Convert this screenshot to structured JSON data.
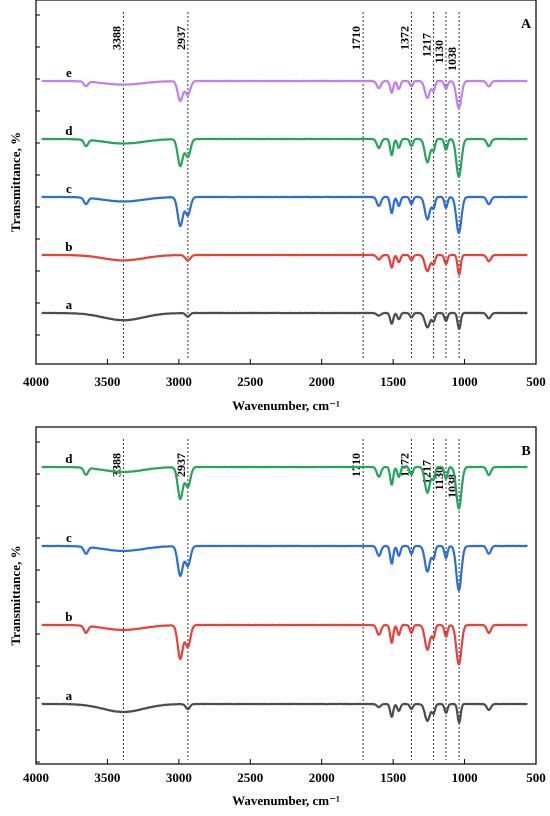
{
  "chart_data": [
    {
      "type": "line",
      "panel_label": "A",
      "xlabel": "Wavenumber, cm⁻¹",
      "ylabel": "Transmittance, %",
      "xlim": [
        4000,
        500
      ],
      "x_ticks": [
        "4000",
        "3500",
        "3000",
        "2500",
        "2000",
        "1500",
        "1000",
        "500"
      ],
      "reference_lines": [
        "3388",
        "2937",
        "1710",
        "1372",
        "1217",
        "1130",
        "1038"
      ],
      "series": [
        {
          "name": "a",
          "color": "#4d4d4d",
          "offset": 0,
          "bands": [
            [
              3388,
              0.8,
              200
            ],
            [
              2937,
              0.4,
              20
            ],
            [
              1600,
              0.3,
              20
            ],
            [
              1510,
              1.2,
              15
            ],
            [
              1460,
              0.7,
              15
            ],
            [
              1372,
              0.5,
              15
            ],
            [
              1260,
              1.6,
              25
            ],
            [
              1217,
              0.9,
              15
            ],
            [
              1130,
              0.9,
              15
            ],
            [
              1038,
              1.8,
              15
            ],
            [
              830,
              0.6,
              20
            ]
          ]
        },
        {
          "name": "b",
          "color": "#e8403a",
          "offset": 1,
          "bands": [
            [
              3388,
              0.6,
              200
            ],
            [
              2937,
              0.6,
              25
            ],
            [
              1600,
              0.5,
              20
            ],
            [
              1510,
              1.4,
              15
            ],
            [
              1460,
              0.8,
              15
            ],
            [
              1372,
              0.6,
              15
            ],
            [
              1260,
              1.8,
              25
            ],
            [
              1217,
              1.0,
              15
            ],
            [
              1130,
              1.0,
              15
            ],
            [
              1038,
              2.2,
              15
            ],
            [
              830,
              0.7,
              20
            ]
          ]
        },
        {
          "name": "c",
          "color": "#2a6fd6",
          "offset": 2,
          "bands": [
            [
              3650,
              0.7,
              20
            ],
            [
              3388,
              0.5,
              200
            ],
            [
              2990,
              3.2,
              25
            ],
            [
              2937,
              2.0,
              25
            ],
            [
              1600,
              1.0,
              20
            ],
            [
              1510,
              1.8,
              15
            ],
            [
              1460,
              1.0,
              15
            ],
            [
              1372,
              0.8,
              15
            ],
            [
              1260,
              2.5,
              25
            ],
            [
              1217,
              1.2,
              15
            ],
            [
              1130,
              1.2,
              15
            ],
            [
              1040,
              4.0,
              25
            ],
            [
              830,
              0.8,
              20
            ]
          ]
        },
        {
          "name": "d",
          "color": "#23a65a",
          "offset": 3,
          "bands": [
            [
              3650,
              0.7,
              20
            ],
            [
              3388,
              0.5,
              200
            ],
            [
              2990,
              3.0,
              25
            ],
            [
              2937,
              2.0,
              25
            ],
            [
              1600,
              1.0,
              20
            ],
            [
              1510,
              1.8,
              15
            ],
            [
              1460,
              1.0,
              15
            ],
            [
              1372,
              0.8,
              15
            ],
            [
              1260,
              2.6,
              25
            ],
            [
              1217,
              1.2,
              15
            ],
            [
              1130,
              1.2,
              15
            ],
            [
              1040,
              4.2,
              25
            ],
            [
              830,
              0.8,
              20
            ]
          ]
        },
        {
          "name": "e",
          "color": "#c27ff0",
          "offset": 4,
          "bands": [
            [
              3650,
              0.5,
              20
            ],
            [
              3388,
              0.4,
              200
            ],
            [
              2990,
              2.2,
              25
            ],
            [
              2937,
              1.5,
              25
            ],
            [
              1600,
              0.8,
              20
            ],
            [
              1510,
              1.3,
              15
            ],
            [
              1460,
              0.9,
              15
            ],
            [
              1372,
              0.6,
              15
            ],
            [
              1260,
              1.9,
              25
            ],
            [
              1217,
              1.0,
              15
            ],
            [
              1130,
              0.9,
              15
            ],
            [
              1040,
              3.0,
              25
            ],
            [
              830,
              0.6,
              20
            ]
          ]
        }
      ]
    },
    {
      "type": "line",
      "panel_label": "B",
      "xlabel": "Wavenumber, cm⁻¹",
      "ylabel": "Transmittance, %",
      "xlim": [
        4000,
        500
      ],
      "x_ticks": [
        "4000",
        "3500",
        "3000",
        "2500",
        "2000",
        "1500",
        "1000",
        "500"
      ],
      "reference_lines": [
        "3388",
        "2937",
        "1710",
        "1372",
        "1217",
        "1130",
        "1038"
      ],
      "series": [
        {
          "name": "a",
          "color": "#4d4d4d",
          "offset": 0,
          "bands": [
            [
              3388,
              0.8,
              200
            ],
            [
              2937,
              0.5,
              20
            ],
            [
              1600,
              0.3,
              20
            ],
            [
              1510,
              1.3,
              15
            ],
            [
              1460,
              0.7,
              15
            ],
            [
              1372,
              0.5,
              15
            ],
            [
              1260,
              1.7,
              25
            ],
            [
              1217,
              0.9,
              15
            ],
            [
              1130,
              0.9,
              15
            ],
            [
              1038,
              1.9,
              15
            ],
            [
              830,
              0.6,
              20
            ]
          ]
        },
        {
          "name": "b",
          "color": "#e8403a",
          "offset": 1,
          "bands": [
            [
              3650,
              0.7,
              20
            ],
            [
              3388,
              0.5,
              200
            ],
            [
              2990,
              3.4,
              25
            ],
            [
              2937,
              2.2,
              25
            ],
            [
              1600,
              1.0,
              20
            ],
            [
              1510,
              1.8,
              15
            ],
            [
              1460,
              1.0,
              15
            ],
            [
              1372,
              0.8,
              15
            ],
            [
              1260,
              2.5,
              25
            ],
            [
              1217,
              1.2,
              15
            ],
            [
              1130,
              1.2,
              15
            ],
            [
              1040,
              4.0,
              25
            ],
            [
              830,
              0.8,
              20
            ]
          ]
        },
        {
          "name": "c",
          "color": "#2a6fd6",
          "offset": 2,
          "bands": [
            [
              3650,
              0.7,
              20
            ],
            [
              3388,
              0.5,
              200
            ],
            [
              2990,
              3.0,
              25
            ],
            [
              2937,
              2.0,
              25
            ],
            [
              1600,
              1.0,
              20
            ],
            [
              1510,
              1.8,
              15
            ],
            [
              1460,
              1.0,
              15
            ],
            [
              1372,
              0.8,
              15
            ],
            [
              1260,
              2.6,
              25
            ],
            [
              1217,
              1.2,
              15
            ],
            [
              1130,
              1.2,
              15
            ],
            [
              1040,
              4.5,
              25
            ],
            [
              830,
              0.8,
              20
            ]
          ]
        },
        {
          "name": "d",
          "color": "#23a65a",
          "offset": 3,
          "bands": [
            [
              3650,
              0.7,
              20
            ],
            [
              3388,
              0.5,
              200
            ],
            [
              2990,
              3.2,
              25
            ],
            [
              2937,
              2.0,
              25
            ],
            [
              1600,
              1.0,
              20
            ],
            [
              1510,
              1.8,
              15
            ],
            [
              1460,
              1.0,
              15
            ],
            [
              1372,
              0.8,
              15
            ],
            [
              1260,
              2.6,
              25
            ],
            [
              1217,
              1.2,
              15
            ],
            [
              1130,
              1.2,
              15
            ],
            [
              1040,
              4.2,
              25
            ],
            [
              830,
              0.8,
              20
            ]
          ]
        }
      ]
    }
  ]
}
